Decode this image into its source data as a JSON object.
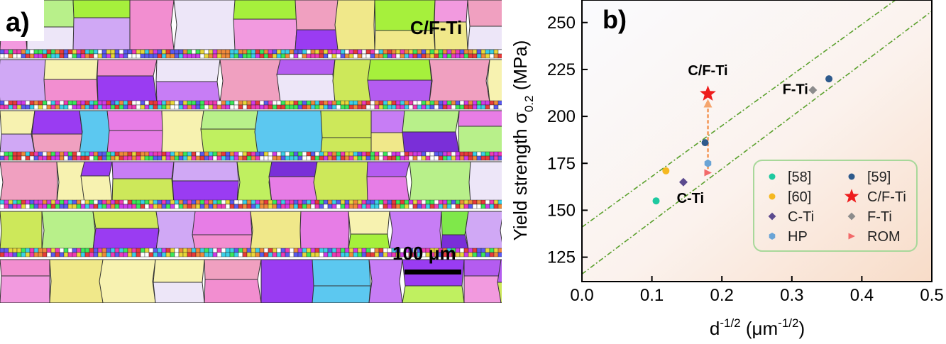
{
  "panel_a": {
    "label": "a)",
    "sample_label": "C/F-Ti",
    "scale_bar_label": "100 μm"
  },
  "chart_data": {
    "type": "scatter",
    "panel_label": "b)",
    "xlabel": "d",
    "xlabel_sup": "-1/2",
    "xlabel_unit_open": " (",
    "xlabel_unit": "μm",
    "xlabel_unit_sup": "-1/2",
    "xlabel_unit_close": ")",
    "ylabel": "Yield strength σ",
    "ylabel_sub": "0.2",
    "ylabel_unit": " (MPa)",
    "xlim": [
      0.0,
      0.5
    ],
    "ylim": [
      112,
      262
    ],
    "xticks": [
      "0.0",
      "0.1",
      "0.2",
      "0.3",
      "0.4",
      "0.5"
    ],
    "yticks": [
      "125",
      "150",
      "175",
      "200",
      "225",
      "250"
    ],
    "series": [
      {
        "name": "[58]",
        "marker": "circle",
        "color": "#1ec9a0",
        "points": [
          {
            "x": 0.106,
            "y": 155
          }
        ]
      },
      {
        "name": "[59]",
        "marker": "circle",
        "color": "#2e5a8c",
        "points": [
          {
            "x": 0.176,
            "y": 186
          },
          {
            "x": 0.353,
            "y": 220
          }
        ]
      },
      {
        "name": "[60]",
        "marker": "circle",
        "color": "#f5b820",
        "points": [
          {
            "x": 0.12,
            "y": 171
          }
        ]
      },
      {
        "name": "C/F-Ti",
        "marker": "star",
        "color": "#ee1c1c",
        "points": [
          {
            "x": 0.18,
            "y": 212
          }
        ]
      },
      {
        "name": "C-Ti",
        "marker": "diamond",
        "color": "#5b4a8e",
        "points": [
          {
            "x": 0.145,
            "y": 165
          }
        ]
      },
      {
        "name": "F-Ti",
        "marker": "diamond",
        "color": "#8c8c8c",
        "points": [
          {
            "x": 0.33,
            "y": 214
          }
        ]
      },
      {
        "name": "HP",
        "marker": "hexagon",
        "color": "#6aa4d6",
        "points": [
          {
            "x": 0.18,
            "y": 175
          }
        ]
      },
      {
        "name": "ROM",
        "marker": "triangle-right",
        "color": "#f26a6a",
        "points": [
          {
            "x": 0.18,
            "y": 170
          }
        ]
      }
    ],
    "fit_lines": [
      {
        "color": "#5aa02c",
        "x": [
          0.0,
          0.5
        ],
        "y": [
          141,
          276
        ]
      },
      {
        "color": "#5aa02c",
        "x": [
          0.0,
          0.5
        ],
        "y": [
          116,
          256
        ]
      }
    ],
    "arrow": {
      "color": "#f5a56e",
      "from": {
        "x": 0.18,
        "y": 172
      },
      "to": {
        "x": 0.18,
        "y": 207
      }
    },
    "annotations": [
      {
        "text": "C/F-Ti",
        "x": 0.18,
        "y": 222
      },
      {
        "text": "F-Ti",
        "x": 0.305,
        "y": 212
      },
      {
        "text": "C-Ti",
        "x": 0.155,
        "y": 154
      }
    ],
    "legend": {
      "position": "bottom-right"
    }
  }
}
